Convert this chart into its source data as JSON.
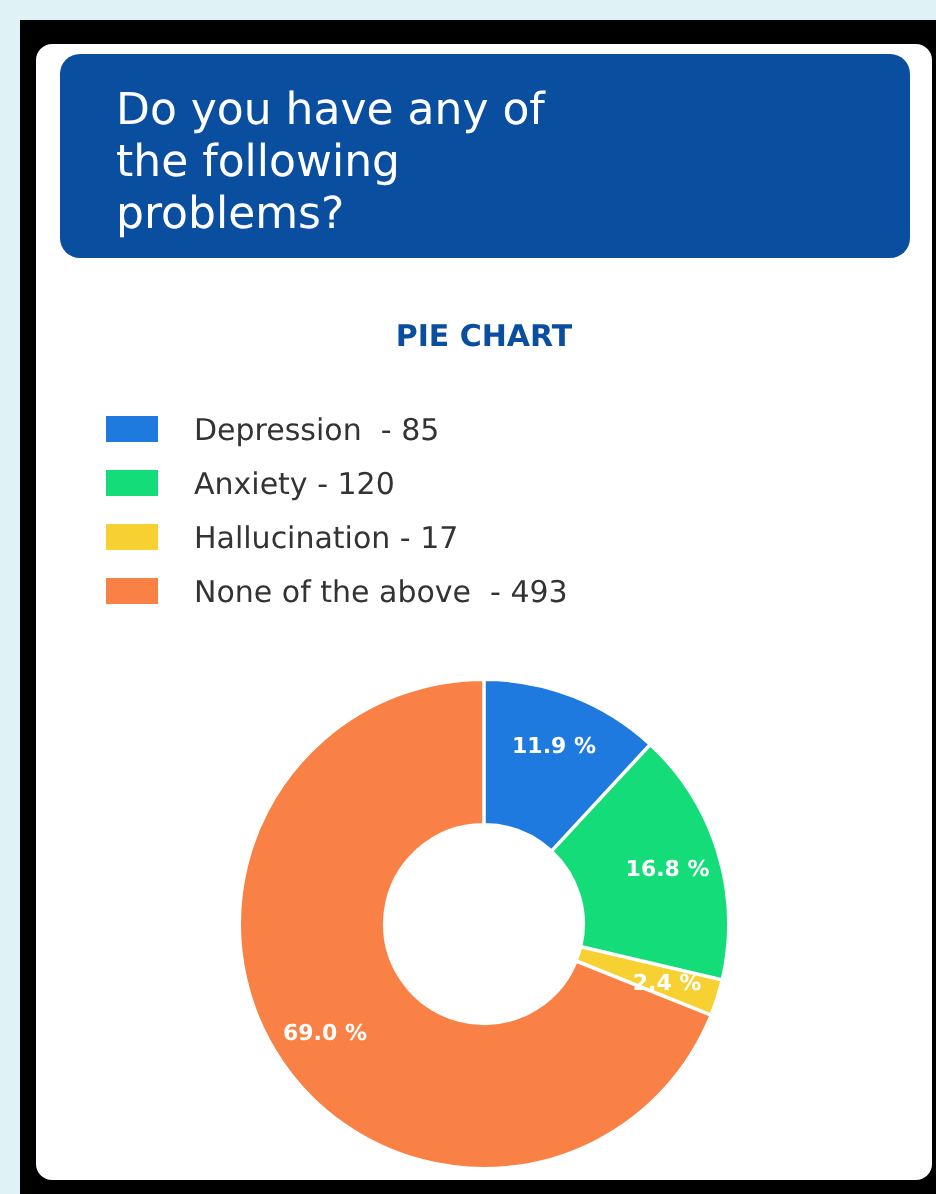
{
  "chart_data": {
    "type": "donut",
    "title": "Do you have any of the following problems?",
    "subtitle": "PIE CHART",
    "categories": [
      "Depression  - 85",
      "Anxiety - 120",
      "Hallucination - 17",
      "None of the above  - 493"
    ],
    "values": [
      11.9,
      16.8,
      2.4,
      69.0
    ],
    "colors": [
      "#1f7ae0",
      "#14dc78",
      "#f7d031",
      "#f98145"
    ],
    "value_labels": [
      "11.9 %",
      "16.8 %",
      "2.4 %",
      "69.0 %"
    ],
    "legend": "top"
  }
}
